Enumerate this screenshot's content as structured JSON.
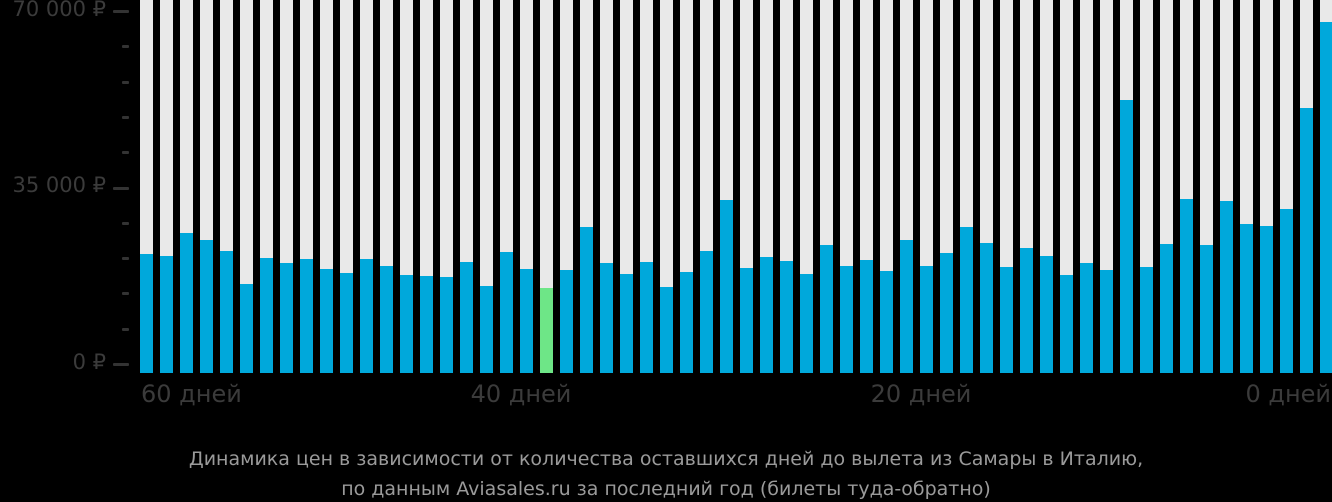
{
  "chart_data": {
    "type": "bar",
    "title": "Динамика цен в зависимости от количества оставшихся дней до вылета из Самары в Италию,",
    "subtitle": "по данным Aviasales.ru за последний год (билеты туда-обратно)",
    "y_axis": {
      "min": 0,
      "max": 70000,
      "major_step": 35000,
      "minor_step": 7000,
      "tick_labels": [
        "70 000 ₽",
        "35 000 ₽",
        "0 ₽"
      ]
    },
    "x_axis": {
      "labels": [
        "60 дней",
        "40 дней",
        "20 дней",
        "0 дней"
      ]
    },
    "values": [
      22500,
      22200,
      26600,
      25300,
      23100,
      16700,
      21800,
      20800,
      21600,
      19600,
      18900,
      21600,
      20200,
      18500,
      18300,
      18100,
      21000,
      16300,
      22900,
      19600,
      15900,
      19400,
      27800,
      20800,
      18700,
      21000,
      16100,
      19100,
      23100,
      33000,
      19800,
      22000,
      21200,
      18700,
      24300,
      20200,
      21400,
      19200,
      25300,
      20200,
      22700,
      27800,
      24700,
      20000,
      23700,
      22200,
      18500,
      20800,
      19400,
      52500,
      20000,
      24500,
      33200,
      24300,
      32800,
      28400,
      28000,
      31300,
      50900,
      67600
    ],
    "highlight_index": 20,
    "highlight_value": 15900,
    "legend_position": "none",
    "grid": false
  },
  "colors": {
    "background": "#000000",
    "bar_fill": "#00a8db",
    "bar_fill_min": "#6ee687",
    "bar_track": "#e9e9e9",
    "axis_text": "#3b3b3b",
    "tick_mark": "#333333",
    "title_text": "#9a9a9a"
  }
}
